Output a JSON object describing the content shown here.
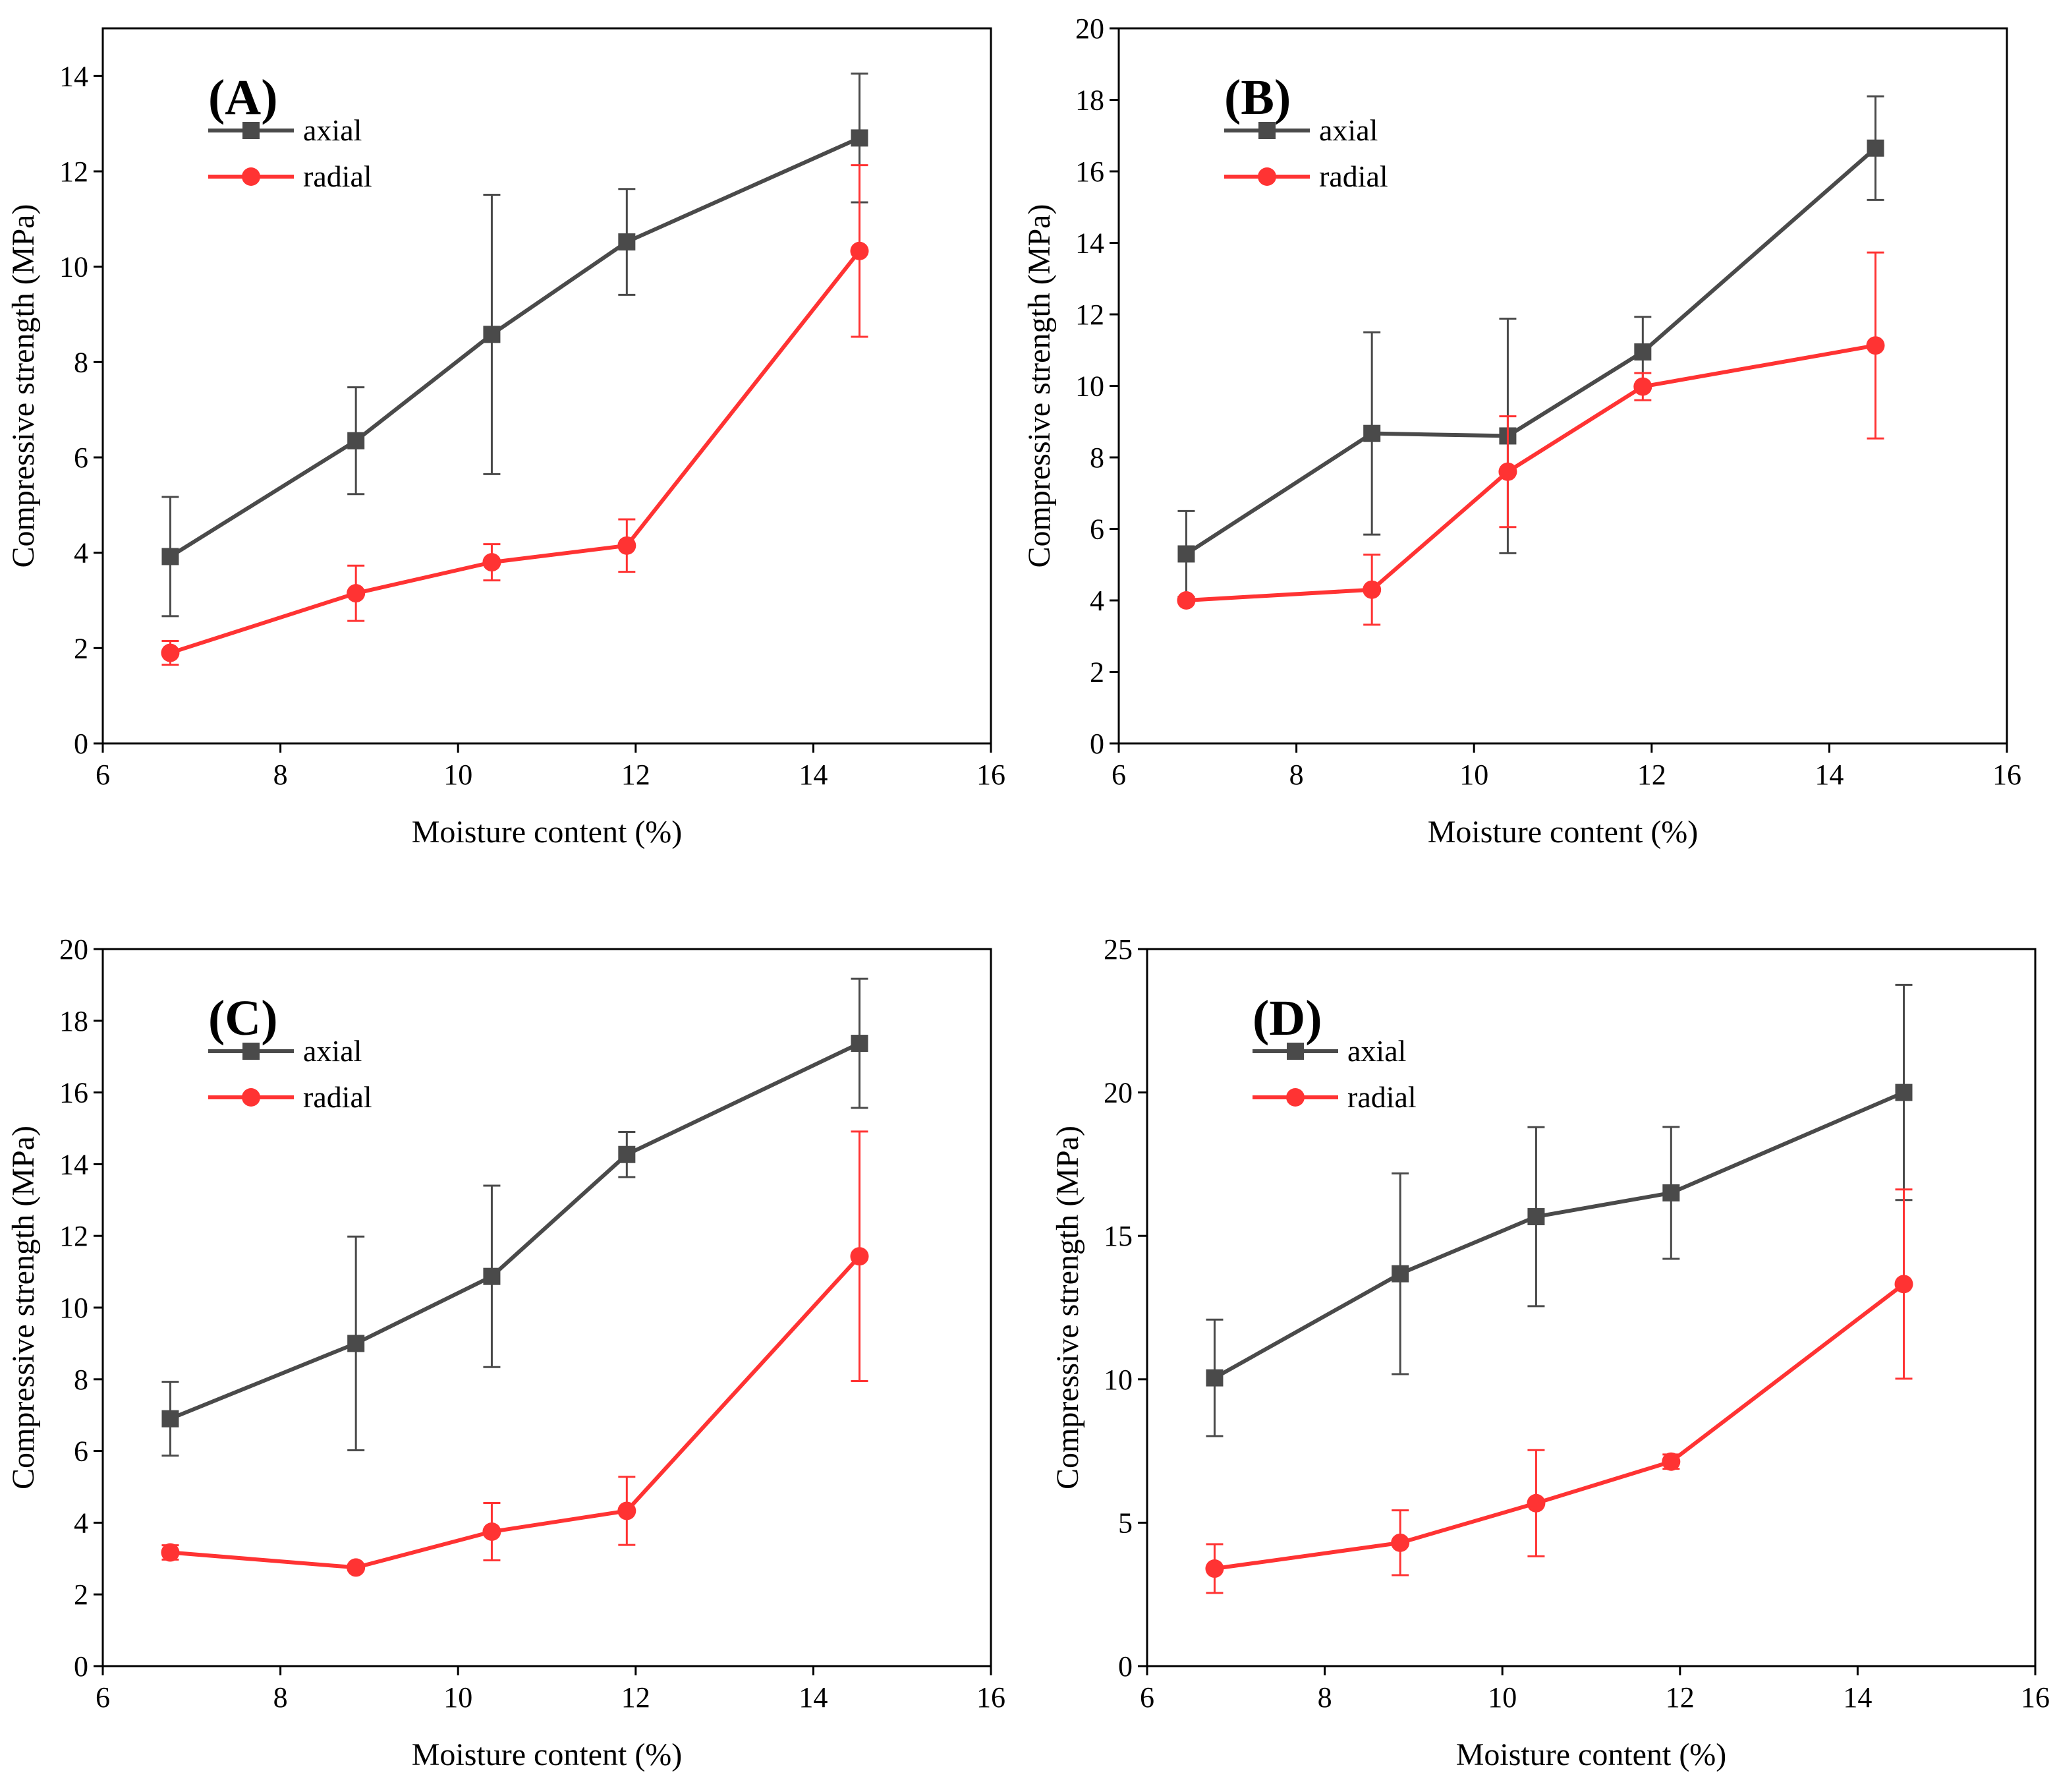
{
  "colors": {
    "axial": "#4a4a4a",
    "radial": "#ff3333"
  },
  "chart_data": [
    {
      "type": "line",
      "panel_label": "(A)",
      "xlabel": "Moisture content (%)",
      "ylabel": "Compressive strength (MPa)",
      "xlim": [
        6,
        16
      ],
      "ylim": [
        0,
        15
      ],
      "xticks": [
        6,
        8,
        10,
        12,
        14,
        16
      ],
      "yticks": [
        0,
        2,
        4,
        6,
        8,
        10,
        12,
        14
      ],
      "x": [
        6.76,
        8.85,
        10.38,
        11.9,
        14.52
      ],
      "series": [
        {
          "name": "axial",
          "values": [
            3.92,
            6.35,
            8.58,
            10.52,
            12.7
          ],
          "errors": [
            1.25,
            1.12,
            2.93,
            1.11,
            1.35
          ]
        },
        {
          "name": "radial",
          "values": [
            1.9,
            3.15,
            3.8,
            4.15,
            10.33
          ],
          "errors": [
            0.25,
            0.58,
            0.38,
            0.55,
            1.8
          ]
        }
      ],
      "legend": "top-left"
    },
    {
      "type": "line",
      "panel_label": "(B)",
      "xlabel": "Moisture content (%)",
      "ylabel": "Compressive strength (MPa)",
      "xlim": [
        6,
        16
      ],
      "ylim": [
        0,
        20
      ],
      "xticks": [
        6,
        8,
        10,
        12,
        14,
        16
      ],
      "yticks": [
        0,
        2,
        4,
        6,
        8,
        10,
        12,
        14,
        16,
        18,
        20
      ],
      "x": [
        6.76,
        8.85,
        10.38,
        11.9,
        14.52
      ],
      "series": [
        {
          "name": "axial",
          "values": [
            5.3,
            8.67,
            8.6,
            10.95,
            16.65
          ],
          "errors": [
            1.2,
            2.83,
            3.28,
            0.98,
            1.45
          ]
        },
        {
          "name": "radial",
          "values": [
            4.0,
            4.3,
            7.6,
            9.98,
            11.13
          ],
          "errors": [
            0.08,
            0.98,
            1.55,
            0.38,
            2.6
          ]
        }
      ],
      "legend": "top-left"
    },
    {
      "type": "line",
      "panel_label": "(C)",
      "xlabel": "Moisture content (%)",
      "ylabel": "Compressive strength (MPa)",
      "xlim": [
        6,
        16
      ],
      "ylim": [
        0,
        20
      ],
      "xticks": [
        6,
        8,
        10,
        12,
        14,
        16
      ],
      "yticks": [
        0,
        2,
        4,
        6,
        8,
        10,
        12,
        14,
        16,
        18,
        20
      ],
      "x": [
        6.76,
        8.85,
        10.38,
        11.9,
        14.52
      ],
      "series": [
        {
          "name": "axial",
          "values": [
            6.9,
            9.0,
            10.87,
            14.27,
            17.37
          ],
          "errors": [
            1.03,
            2.98,
            2.53,
            0.63,
            1.8
          ]
        },
        {
          "name": "radial",
          "values": [
            3.17,
            2.75,
            3.75,
            4.33,
            11.43
          ],
          "errors": [
            0.2,
            0.08,
            0.8,
            0.95,
            3.48
          ]
        }
      ],
      "legend": "top-left"
    },
    {
      "type": "line",
      "panel_label": "(D)",
      "xlabel": "Moisture content (%)",
      "ylabel": "Compressive strength (MPa)",
      "xlim": [
        6,
        16
      ],
      "ylim": [
        0,
        25
      ],
      "xticks": [
        6,
        8,
        10,
        12,
        14,
        16
      ],
      "yticks": [
        0,
        5,
        10,
        15,
        20,
        25
      ],
      "x": [
        6.76,
        8.85,
        10.38,
        11.9,
        14.52
      ],
      "series": [
        {
          "name": "axial",
          "values": [
            10.05,
            13.68,
            15.67,
            16.5,
            20.0
          ],
          "errors": [
            2.03,
            3.5,
            3.12,
            2.3,
            3.75
          ]
        },
        {
          "name": "radial",
          "values": [
            3.4,
            4.3,
            5.68,
            7.13,
            13.32
          ],
          "errors": [
            0.85,
            1.13,
            1.85,
            0.25,
            3.3
          ]
        }
      ],
      "legend": "top-left"
    }
  ]
}
